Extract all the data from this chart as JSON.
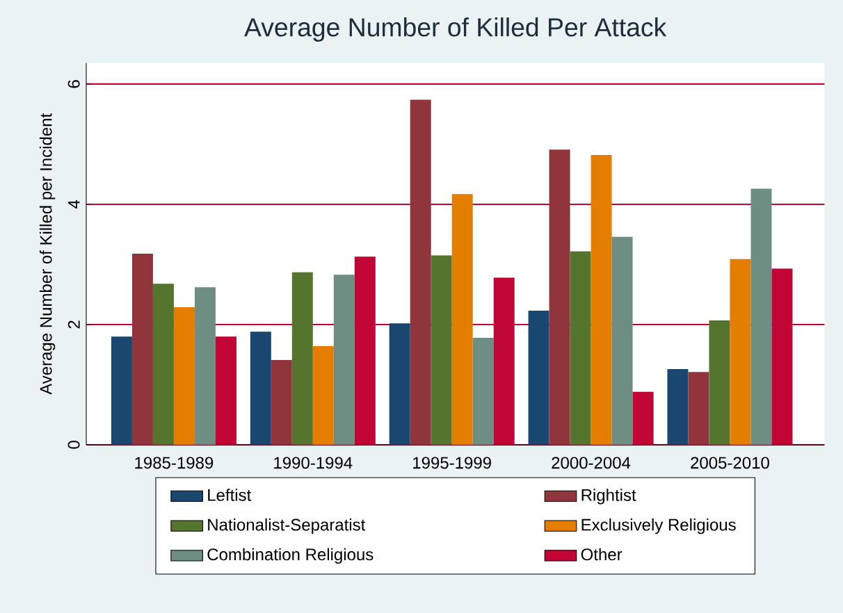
{
  "chart_data": {
    "type": "bar",
    "title": "Average Number of Killed Per Attack",
    "ylabel": "Average Number of Killed per Incident",
    "categories": [
      "1985-1989",
      "1990-1994",
      "1995-1999",
      "2000-2004",
      "2005-2010"
    ],
    "series": [
      {
        "name": "Leftist",
        "color": "#1a476f",
        "values": [
          1.8,
          1.88,
          2.02,
          2.23,
          1.26
        ]
      },
      {
        "name": "Rightist",
        "color": "#90353b",
        "values": [
          3.18,
          1.41,
          5.74,
          4.91,
          1.21
        ]
      },
      {
        "name": "Nationalist-Separatist",
        "color": "#55752f",
        "values": [
          2.68,
          2.87,
          3.15,
          3.22,
          2.07
        ]
      },
      {
        "name": "Exclusively Religious",
        "color": "#e37e00",
        "values": [
          2.29,
          1.64,
          4.17,
          4.82,
          3.09
        ]
      },
      {
        "name": "Combination Religious",
        "color": "#6e8e84",
        "values": [
          2.62,
          2.83,
          1.78,
          3.46,
          4.26
        ]
      },
      {
        "name": "Other",
        "color": "#c10534",
        "values": [
          1.8,
          3.13,
          2.78,
          0.88,
          2.93
        ]
      }
    ],
    "ylim": [
      0,
      6.35
    ],
    "yticks": [
      0,
      2,
      4,
      6
    ],
    "grid": "y",
    "legend": "bottom"
  }
}
